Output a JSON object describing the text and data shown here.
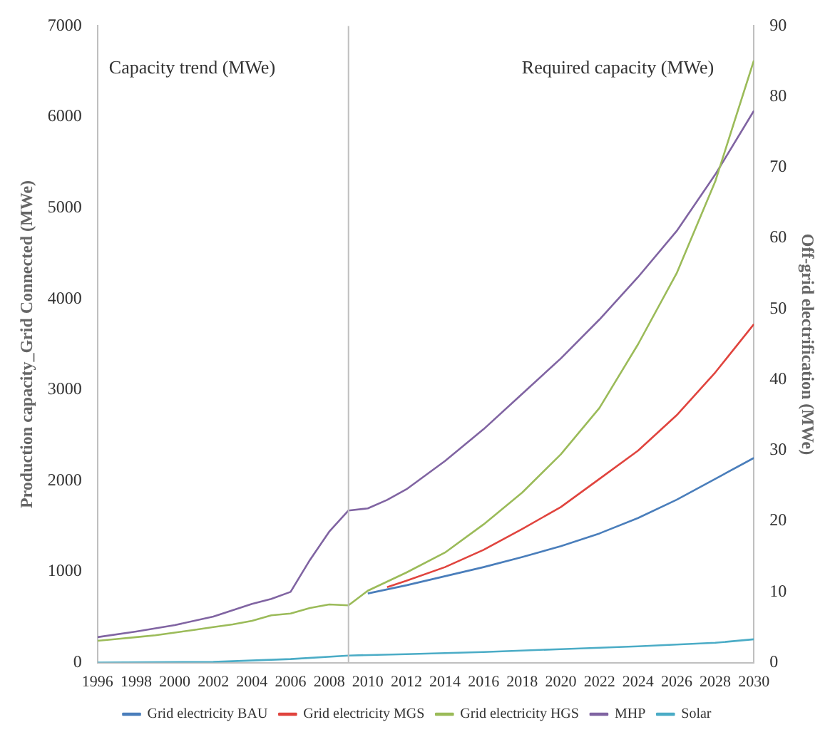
{
  "chart_data": {
    "type": "line",
    "xlabel": null,
    "ylabel": "Production capacity_Grid Connected (MWe)",
    "y2label": "Off-grid electrification (MWe)",
    "annotations": [
      "Capacity trend (MWe)",
      "Required capacity (MWe)"
    ],
    "xlim": [
      1996,
      2030
    ],
    "xticks": [
      1996,
      1998,
      2000,
      2002,
      2004,
      2006,
      2008,
      2010,
      2012,
      2014,
      2016,
      2018,
      2020,
      2022,
      2024,
      2026,
      2028,
      2030
    ],
    "ylim": [
      0,
      7000
    ],
    "yticks": [
      0,
      1000,
      2000,
      3000,
      4000,
      5000,
      6000,
      7000
    ],
    "y2lim": [
      0,
      90
    ],
    "y2ticks": [
      0,
      10,
      20,
      30,
      40,
      50,
      60,
      70,
      80,
      90
    ],
    "ref_lines": [
      {
        "axis": "x",
        "value": 2009,
        "color": "#bfbfbf"
      }
    ],
    "grid": false,
    "legend": "bottom",
    "marker": "none",
    "line_style": "solid",
    "series": [
      {
        "name": "Grid electricity BAU",
        "color": "#4a7ebb",
        "x": [
          2010,
          2012,
          2014,
          2016,
          2018,
          2020,
          2022,
          2024,
          2026,
          2028,
          2030
        ],
        "values": [
          760,
          850,
          950,
          1050,
          1160,
          1280,
          1420,
          1590,
          1790,
          2020,
          2250
        ]
      },
      {
        "name": "Grid electricity MGS",
        "color": "#e0443e",
        "x": [
          2011,
          2012,
          2014,
          2016,
          2018,
          2020,
          2022,
          2024,
          2026,
          2028,
          2030
        ],
        "values": [
          830,
          900,
          1050,
          1240,
          1470,
          1710,
          2020,
          2330,
          2720,
          3190,
          3720
        ]
      },
      {
        "name": "Grid electricity HGS",
        "color": "#9bbb59",
        "x": [
          1996,
          1997,
          1998,
          1999,
          2000,
          2001,
          2002,
          2003,
          2004,
          2005,
          2006,
          2007,
          2008,
          2009,
          2010,
          2012,
          2014,
          2016,
          2018,
          2020,
          2022,
          2024,
          2026,
          2028,
          2030
        ],
        "values": [
          240,
          260,
          280,
          300,
          330,
          360,
          390,
          420,
          460,
          520,
          540,
          600,
          640,
          630,
          790,
          990,
          1210,
          1520,
          1870,
          2290,
          2800,
          3500,
          4280,
          5290,
          6620
        ]
      },
      {
        "name": "MHP",
        "color": "#8064a2",
        "axis": "y2",
        "x": [
          1996,
          1998,
          2000,
          2002,
          2004,
          2005,
          2006,
          2007,
          2008,
          2009,
          2010,
          2011,
          2012,
          2014,
          2016,
          2018,
          2020,
          2022,
          2024,
          2026,
          2028,
          2030
        ],
        "values": [
          3.6,
          4.4,
          5.3,
          6.5,
          8.3,
          9,
          10,
          14.5,
          18.5,
          21.5,
          21.8,
          23,
          24.5,
          28.5,
          33,
          38,
          43,
          48.5,
          54.5,
          61,
          69,
          78
        ]
      },
      {
        "name": "Solar",
        "color": "#4bacc6",
        "axis": "y2",
        "x": [
          1996,
          2002,
          2006,
          2009,
          2012,
          2016,
          2020,
          2024,
          2028,
          2030
        ],
        "values": [
          0,
          0.1,
          0.5,
          1,
          1.2,
          1.5,
          1.9,
          2.3,
          2.8,
          3.3
        ]
      }
    ]
  }
}
